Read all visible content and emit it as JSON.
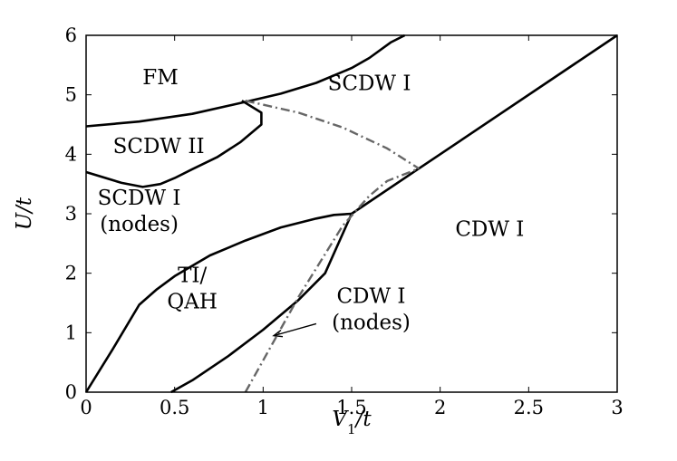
{
  "axes": {
    "xlabel": "V_1/t",
    "ylabel": "U/t",
    "xlim": [
      0,
      3
    ],
    "ylim": [
      0,
      6
    ],
    "xticks": [
      "0",
      "0.5",
      "1",
      "1.5",
      "2",
      "2.5",
      "3"
    ],
    "yticks": [
      "0",
      "1",
      "2",
      "3",
      "4",
      "5",
      "6"
    ]
  },
  "regions": [
    {
      "lines": [
        "FM"
      ],
      "at": [
        0.42,
        5.3
      ]
    },
    {
      "lines": [
        "SCDW I"
      ],
      "at": [
        1.6,
        5.2
      ]
    },
    {
      "lines": [
        "SCDW II"
      ],
      "at": [
        0.41,
        4.14
      ]
    },
    {
      "lines": [
        "SCDW I",
        "(nodes)"
      ],
      "at": [
        0.3,
        3.05
      ]
    },
    {
      "lines": [
        "CDW I"
      ],
      "at": [
        2.28,
        2.75
      ]
    },
    {
      "lines": [
        "TI/",
        "QAH"
      ],
      "at": [
        0.6,
        1.75
      ]
    },
    {
      "lines": [
        "CDW I",
        "(nodes)"
      ],
      "at": [
        1.61,
        1.4
      ]
    }
  ],
  "annotation_arrow": {
    "from": [
      1.3,
      1.15
    ],
    "to": [
      1.06,
      0.95
    ]
  },
  "solid_boundaries": [
    {
      "name": "fm-boundary",
      "points": [
        [
          0,
          4.47
        ],
        [
          0.3,
          4.55
        ],
        [
          0.6,
          4.68
        ],
        [
          0.9,
          4.88
        ],
        [
          1.1,
          5.02
        ],
        [
          1.3,
          5.2
        ],
        [
          1.5,
          5.45
        ],
        [
          1.6,
          5.62
        ],
        [
          1.72,
          5.88
        ],
        [
          1.8,
          6.0
        ]
      ]
    },
    {
      "name": "scdw-ii-boundary",
      "points": [
        [
          0.88,
          4.9
        ],
        [
          0.99,
          4.7
        ],
        [
          0.99,
          4.5
        ],
        [
          0.87,
          4.2
        ],
        [
          0.74,
          3.95
        ],
        [
          0.6,
          3.75
        ],
        [
          0.5,
          3.6
        ],
        [
          0.42,
          3.5
        ],
        [
          0.32,
          3.45
        ],
        [
          0.2,
          3.52
        ],
        [
          0,
          3.7
        ]
      ]
    },
    {
      "name": "cdw-diagonal-boundary",
      "points": [
        [
          1.5,
          3.0
        ],
        [
          1.88,
          3.76
        ],
        [
          3.0,
          6.0
        ]
      ]
    },
    {
      "name": "ti-qah-upper-boundary",
      "points": [
        [
          0,
          0
        ],
        [
          0.15,
          0.72
        ],
        [
          0.3,
          1.47
        ],
        [
          0.4,
          1.73
        ],
        [
          0.5,
          1.95
        ],
        [
          0.7,
          2.3
        ],
        [
          0.9,
          2.55
        ],
        [
          1.1,
          2.77
        ],
        [
          1.3,
          2.92
        ],
        [
          1.4,
          2.98
        ],
        [
          1.5,
          3.0
        ]
      ]
    },
    {
      "name": "ti-qah-lower-boundary",
      "points": [
        [
          0.48,
          0
        ],
        [
          0.6,
          0.2
        ],
        [
          0.8,
          0.6
        ],
        [
          1.0,
          1.05
        ],
        [
          1.2,
          1.55
        ],
        [
          1.35,
          2.0
        ],
        [
          1.5,
          3.0
        ]
      ]
    }
  ],
  "dashdot_boundaries": [
    {
      "name": "cdw-nodes-boundary",
      "points": [
        [
          0.9,
          0
        ],
        [
          1.2,
          1.6
        ],
        [
          1.45,
          2.8
        ],
        [
          1.6,
          3.3
        ],
        [
          1.7,
          3.55
        ],
        [
          1.88,
          3.76
        ]
      ]
    },
    {
      "name": "scdw-nodes-boundary",
      "points": [
        [
          0.9,
          4.9
        ],
        [
          1.2,
          4.7
        ],
        [
          1.45,
          4.45
        ],
        [
          1.7,
          4.1
        ],
        [
          1.88,
          3.76
        ]
      ]
    }
  ]
}
